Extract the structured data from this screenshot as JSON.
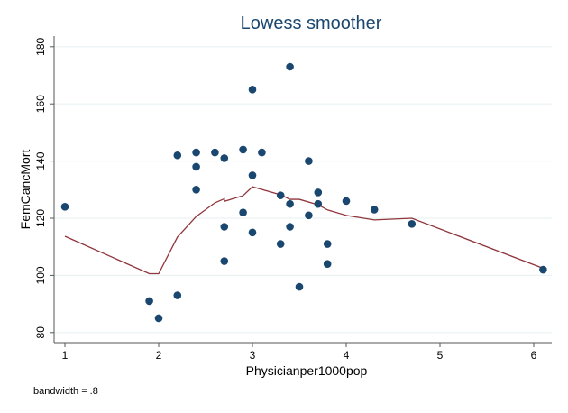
{
  "chart_data": {
    "type": "scatter",
    "title": "Lowess smoother",
    "xlabel": "Physicianper1000pop",
    "ylabel": "FemCancMort",
    "note": "bandwidth = .8",
    "xlim": [
      0.9,
      6.2
    ],
    "ylim": [
      78,
      183
    ],
    "xticks": [
      1,
      2,
      3,
      4,
      5,
      6
    ],
    "yticks": [
      80,
      100,
      120,
      140,
      160,
      180
    ],
    "grid": true,
    "legend": "none",
    "colors": {
      "points": "#1a476f",
      "line": "#90353b",
      "title": "#1a476f",
      "grid": "#eaf2f3"
    },
    "points": [
      [
        1.0,
        124
      ],
      [
        1.9,
        91
      ],
      [
        2.0,
        85
      ],
      [
        2.2,
        142
      ],
      [
        2.2,
        93
      ],
      [
        2.4,
        143
      ],
      [
        2.4,
        138
      ],
      [
        2.4,
        130
      ],
      [
        2.6,
        143
      ],
      [
        2.7,
        141
      ],
      [
        2.7,
        117
      ],
      [
        2.7,
        105
      ],
      [
        2.9,
        144
      ],
      [
        2.9,
        122
      ],
      [
        3.0,
        165
      ],
      [
        3.0,
        135
      ],
      [
        3.0,
        115
      ],
      [
        3.1,
        143
      ],
      [
        3.3,
        128
      ],
      [
        3.3,
        111
      ],
      [
        3.4,
        125
      ],
      [
        3.4,
        117
      ],
      [
        3.4,
        173
      ],
      [
        3.5,
        96
      ],
      [
        3.6,
        140
      ],
      [
        3.6,
        121
      ],
      [
        3.7,
        129
      ],
      [
        3.7,
        125
      ],
      [
        3.8,
        111
      ],
      [
        3.8,
        104
      ],
      [
        4.0,
        126
      ],
      [
        4.3,
        123
      ],
      [
        4.7,
        118
      ],
      [
        6.1,
        102
      ]
    ],
    "lowess": [
      [
        1.0,
        113.7
      ],
      [
        1.9,
        100.6
      ],
      [
        2.0,
        100.6
      ],
      [
        2.2,
        113.4
      ],
      [
        2.4,
        120.6
      ],
      [
        2.6,
        125.4
      ],
      [
        2.7,
        126.8
      ],
      [
        2.7,
        125.9
      ],
      [
        2.9,
        127.9
      ],
      [
        3.0,
        131
      ],
      [
        3.3,
        128.2
      ],
      [
        3.4,
        126.6
      ],
      [
        3.5,
        126.6
      ],
      [
        3.7,
        124.7
      ],
      [
        3.8,
        122.9
      ],
      [
        4.0,
        121
      ],
      [
        4.3,
        119.4
      ],
      [
        4.7,
        120
      ],
      [
        6.1,
        102.5
      ]
    ]
  }
}
